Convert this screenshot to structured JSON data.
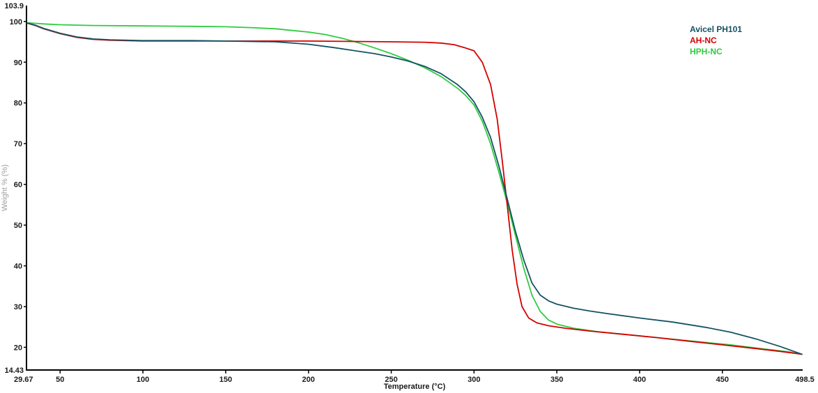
{
  "chart_data": {
    "type": "line",
    "title": "",
    "xlabel": "Temperature (°C)",
    "ylabel": "Weight % (%)",
    "xlim": [
      29.67,
      498.5
    ],
    "ylim": [
      14.43,
      103.9
    ],
    "x_ticks": [
      50,
      100,
      150,
      200,
      250,
      300,
      350,
      400,
      450
    ],
    "y_ticks": [
      20,
      30,
      40,
      50,
      60,
      70,
      80,
      90,
      100
    ],
    "x_edge_labels": {
      "min": "29.67",
      "max": "498.5"
    },
    "y_edge_labels": {
      "min": "14.43",
      "max": "103.9"
    },
    "grid": false,
    "legend_position": "top-right",
    "colors": {
      "axis": "#000000",
      "tick_label": "#1a1a1a",
      "xlabel": "#1a1a1a",
      "ylabel": "#9e9e9e",
      "background": "#ffffff"
    },
    "series": [
      {
        "name": "HPH-NC",
        "color": "#2ecc40",
        "points": [
          [
            30,
            99.7
          ],
          [
            40,
            99.4
          ],
          [
            50,
            99.2
          ],
          [
            70,
            99.0
          ],
          [
            100,
            98.9
          ],
          [
            130,
            98.8
          ],
          [
            150,
            98.7
          ],
          [
            165,
            98.5
          ],
          [
            180,
            98.2
          ],
          [
            190,
            97.8
          ],
          [
            200,
            97.4
          ],
          [
            210,
            96.8
          ],
          [
            220,
            95.9
          ],
          [
            230,
            94.8
          ],
          [
            240,
            93.5
          ],
          [
            250,
            92.1
          ],
          [
            260,
            90.5
          ],
          [
            270,
            88.7
          ],
          [
            280,
            86.5
          ],
          [
            290,
            83.6
          ],
          [
            295,
            81.8
          ],
          [
            300,
            79.5
          ],
          [
            305,
            75.5
          ],
          [
            310,
            70.0
          ],
          [
            315,
            63.0
          ],
          [
            320,
            55.5
          ],
          [
            325,
            47.5
          ],
          [
            330,
            39.5
          ],
          [
            335,
            32.8
          ],
          [
            340,
            28.8
          ],
          [
            345,
            26.7
          ],
          [
            350,
            25.7
          ],
          [
            360,
            24.7
          ],
          [
            375,
            23.8
          ],
          [
            395,
            23.0
          ],
          [
            415,
            22.2
          ],
          [
            435,
            21.4
          ],
          [
            455,
            20.6
          ],
          [
            475,
            19.6
          ],
          [
            490,
            18.9
          ],
          [
            498,
            18.3
          ]
        ]
      },
      {
        "name": "AH-NC",
        "color": "#d40000",
        "points": [
          [
            30,
            99.6
          ],
          [
            35,
            99.0
          ],
          [
            40,
            98.2
          ],
          [
            50,
            97.0
          ],
          [
            60,
            96.1
          ],
          [
            70,
            95.6
          ],
          [
            80,
            95.4
          ],
          [
            100,
            95.2
          ],
          [
            150,
            95.2
          ],
          [
            200,
            95.2
          ],
          [
            250,
            95.0
          ],
          [
            270,
            94.9
          ],
          [
            280,
            94.7
          ],
          [
            288,
            94.3
          ],
          [
            294,
            93.6
          ],
          [
            300,
            92.8
          ],
          [
            305,
            90.0
          ],
          [
            310,
            84.5
          ],
          [
            314,
            76.0
          ],
          [
            317,
            66.0
          ],
          [
            320,
            55.0
          ],
          [
            323,
            44.0
          ],
          [
            326,
            35.5
          ],
          [
            329,
            30.0
          ],
          [
            333,
            27.2
          ],
          [
            338,
            26.0
          ],
          [
            345,
            25.3
          ],
          [
            355,
            24.7
          ],
          [
            370,
            24.0
          ],
          [
            390,
            23.2
          ],
          [
            410,
            22.4
          ],
          [
            430,
            21.5
          ],
          [
            450,
            20.6
          ],
          [
            470,
            19.7
          ],
          [
            485,
            19.0
          ],
          [
            498,
            18.3
          ]
        ]
      },
      {
        "name": "Avicel PH101",
        "color": "#155263",
        "points": [
          [
            30,
            99.6
          ],
          [
            35,
            99.1
          ],
          [
            40,
            98.3
          ],
          [
            50,
            97.1
          ],
          [
            60,
            96.2
          ],
          [
            70,
            95.7
          ],
          [
            80,
            95.5
          ],
          [
            100,
            95.3
          ],
          [
            130,
            95.3
          ],
          [
            150,
            95.2
          ],
          [
            180,
            95.0
          ],
          [
            200,
            94.4
          ],
          [
            215,
            93.6
          ],
          [
            230,
            92.7
          ],
          [
            240,
            92.1
          ],
          [
            250,
            91.3
          ],
          [
            260,
            90.3
          ],
          [
            270,
            89.0
          ],
          [
            280,
            87.2
          ],
          [
            290,
            84.5
          ],
          [
            295,
            82.7
          ],
          [
            300,
            80.3
          ],
          [
            305,
            76.5
          ],
          [
            310,
            71.5
          ],
          [
            315,
            64.5
          ],
          [
            320,
            56.5
          ],
          [
            325,
            48.5
          ],
          [
            330,
            41.5
          ],
          [
            335,
            35.8
          ],
          [
            340,
            32.8
          ],
          [
            345,
            31.4
          ],
          [
            350,
            30.6
          ],
          [
            360,
            29.6
          ],
          [
            370,
            28.9
          ],
          [
            380,
            28.3
          ],
          [
            400,
            27.2
          ],
          [
            420,
            26.2
          ],
          [
            440,
            24.9
          ],
          [
            455,
            23.7
          ],
          [
            470,
            22.1
          ],
          [
            485,
            20.2
          ],
          [
            498,
            18.3
          ]
        ]
      }
    ],
    "legend": [
      {
        "label": "Avicel PH101",
        "color": "#155263"
      },
      {
        "label": "AH-NC",
        "color": "#d40000"
      },
      {
        "label": "HPH-NC",
        "color": "#2ecc40"
      }
    ]
  }
}
